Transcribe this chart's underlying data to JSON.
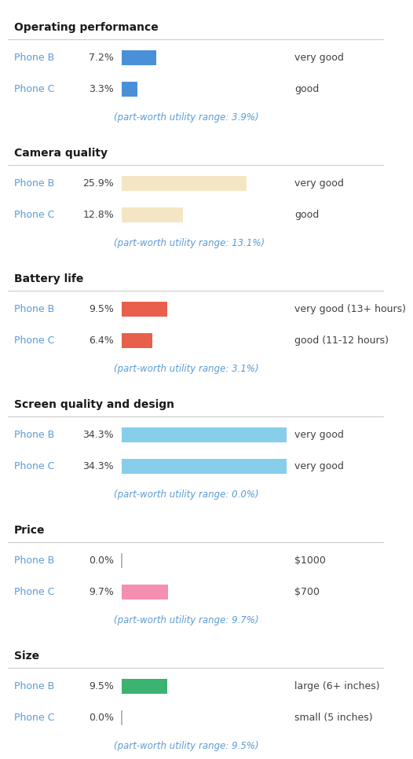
{
  "sections": [
    {
      "title": "Operating performance",
      "rows": [
        {
          "label": "Phone B",
          "pct": "7.2%",
          "value": 7.2,
          "color": "#4A90D9",
          "annotation": "very good"
        },
        {
          "label": "Phone C",
          "pct": "3.3%",
          "value": 3.3,
          "color": "#4A90D9",
          "annotation": "good"
        }
      ],
      "note": "(part-worth utility range: 3.9%)"
    },
    {
      "title": "Camera quality",
      "rows": [
        {
          "label": "Phone B",
          "pct": "25.9%",
          "value": 25.9,
          "color": "#F5E6C3",
          "annotation": "very good"
        },
        {
          "label": "Phone C",
          "pct": "12.8%",
          "value": 12.8,
          "color": "#F5E6C3",
          "annotation": "good"
        }
      ],
      "note": "(part-worth utility range: 13.1%)"
    },
    {
      "title": "Battery life",
      "rows": [
        {
          "label": "Phone B",
          "pct": "9.5%",
          "value": 9.5,
          "color": "#E8604C",
          "annotation": "very good (13+ hours)"
        },
        {
          "label": "Phone C",
          "pct": "6.4%",
          "value": 6.4,
          "color": "#E8604C",
          "annotation": "good (11-12 hours)"
        }
      ],
      "note": "(part-worth utility range: 3.1%)"
    },
    {
      "title": "Screen quality and design",
      "rows": [
        {
          "label": "Phone B",
          "pct": "34.3%",
          "value": 34.3,
          "color": "#87CEEB",
          "annotation": "very good"
        },
        {
          "label": "Phone C",
          "pct": "34.3%",
          "value": 34.3,
          "color": "#87CEEB",
          "annotation": "very good"
        }
      ],
      "note": "(part-worth utility range: 0.0%)"
    },
    {
      "title": "Price",
      "rows": [
        {
          "label": "Phone B",
          "pct": "0.0%",
          "value": 0.0,
          "color": "#F48FB1",
          "annotation": "$1000"
        },
        {
          "label": "Phone C",
          "pct": "9.7%",
          "value": 9.7,
          "color": "#F48FB1",
          "annotation": "$700"
        }
      ],
      "note": "(part-worth utility range: 9.7%)"
    },
    {
      "title": "Size",
      "rows": [
        {
          "label": "Phone B",
          "pct": "9.5%",
          "value": 9.5,
          "color": "#3CB371",
          "annotation": "large (6+ inches)"
        },
        {
          "label": "Phone C",
          "pct": "0.0%",
          "value": 0.0,
          "color": "#3CB371",
          "annotation": "small (5 inches)"
        }
      ],
      "note": "(part-worth utility range: 9.5%)"
    }
  ],
  "max_val": 34.3,
  "bg_color": "#FFFFFF",
  "label_color": "#5B9BD5",
  "title_color": "#1A1A1A",
  "note_color": "#5B9BD5",
  "annotation_color": "#404040",
  "pct_color": "#404040",
  "sep_color": "#CCCCCC"
}
